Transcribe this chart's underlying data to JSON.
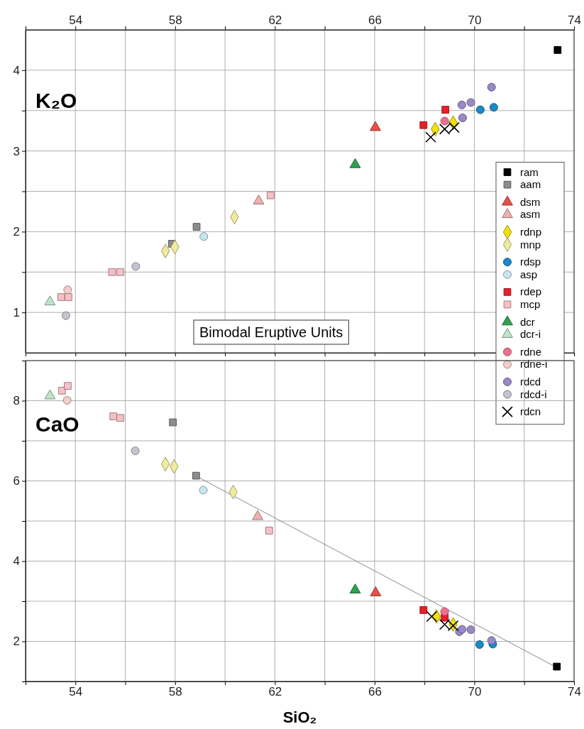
{
  "chart_data": [
    {
      "type": "scatter",
      "ylabel": "K₂O",
      "annotations": [
        "Bimodal Eruptive Units"
      ],
      "legend": "right",
      "grid": true,
      "tick_labels": "y",
      "xlim": [
        52,
        74
      ],
      "xticks": [
        {
          "value": 52,
          "label": null
        },
        54,
        {
          "value": 56,
          "label": null
        },
        58,
        {
          "value": 60,
          "label": null
        },
        62,
        {
          "value": 64,
          "label": null
        },
        66,
        {
          "value": 68,
          "label": null
        },
        70,
        {
          "value": 72,
          "label": null
        },
        74
      ],
      "x2lim": [
        52,
        74
      ],
      "x2ticks": [
        {
          "value": 52,
          "label": null
        },
        54,
        {
          "value": 56,
          "label": null
        },
        58,
        {
          "value": 60,
          "label": null
        },
        62,
        {
          "value": 64,
          "label": null
        },
        66,
        {
          "value": 68,
          "label": null
        },
        70,
        {
          "value": 72,
          "label": null
        },
        74
      ],
      "ylim": [
        0.5,
        4.5
      ],
      "yticks": [
        1,
        {
          "value": 1.5,
          "label": null
        },
        2,
        {
          "value": 2.5,
          "label": null
        },
        3,
        {
          "value": 3.5,
          "label": null
        },
        4
      ],
      "series": [
        {
          "name": "ram",
          "color": "#000000",
          "marker": "square",
          "x": [
            73.34
          ],
          "values": [
            4.25
          ]
        },
        {
          "name": "aam",
          "color": "#8c8c8c",
          "marker": "square",
          "x": [
            57.87,
            58.86
          ],
          "values": [
            1.85,
            2.06
          ]
        },
        {
          "name": "dsm",
          "color": "#e8504a",
          "marker": "triangle",
          "x": [
            66.03
          ],
          "values": [
            3.29
          ]
        },
        {
          "name": "asm",
          "color": "#f0b0b0",
          "marker": "triangle",
          "x": [
            61.35
          ],
          "values": [
            2.38
          ]
        },
        {
          "name": "rdnp",
          "color": "#f0e010",
          "marker": "diamond",
          "x": [
            68.43,
            69.15
          ],
          "values": [
            3.27,
            3.35
          ]
        },
        {
          "name": "mnp",
          "color": "#f0ec9c",
          "marker": "diamond",
          "x": [
            57.61,
            57.99,
            60.38
          ],
          "values": [
            1.76,
            1.81,
            2.18
          ]
        },
        {
          "name": "rdsp",
          "color": "#1a8ac8",
          "marker": "circle",
          "x": [
            70.24,
            70.78
          ],
          "values": [
            3.51,
            3.54
          ]
        },
        {
          "name": "asp",
          "color": "#c8e6ee",
          "marker": "circle",
          "x": [
            59.15
          ],
          "values": [
            1.94
          ]
        },
        {
          "name": "rdep",
          "color": "#e8202a",
          "marker": "square",
          "x": [
            67.96,
            68.84
          ],
          "values": [
            3.32,
            3.51
          ]
        },
        {
          "name": "mcp",
          "color": "#f6c0c6",
          "marker": "square",
          "x": [
            53.43,
            53.72,
            55.47,
            55.8,
            61.83
          ],
          "values": [
            1.19,
            1.19,
            1.5,
            1.5,
            2.45
          ]
        },
        {
          "name": "dcr",
          "color": "#30a050",
          "marker": "triangle",
          "x": [
            65.22
          ],
          "values": [
            2.83
          ]
        },
        {
          "name": "dcr-i",
          "color": "#bfe3c8",
          "marker": "triangle",
          "x": [
            52.98
          ],
          "values": [
            1.13
          ]
        },
        {
          "name": "rdne",
          "color": "#f07090",
          "marker": "circle",
          "x": [
            68.81
          ],
          "values": [
            3.37
          ]
        },
        {
          "name": "rdne-i",
          "color": "#f4cccc",
          "marker": "circle",
          "x": [
            53.69
          ],
          "values": [
            1.28
          ]
        },
        {
          "name": "rdcd",
          "color": "#9a88c8",
          "marker": "circle",
          "x": [
            69.53,
            69.5,
            69.86,
            70.69
          ],
          "values": [
            3.41,
            3.57,
            3.6,
            3.79
          ]
        },
        {
          "name": "rdcd-i",
          "color": "#c4c4d0",
          "marker": "circle",
          "x": [
            53.62,
            56.42
          ],
          "values": [
            0.96,
            1.57
          ]
        },
        {
          "name": "rdcn",
          "color": "#000000",
          "marker": "cross",
          "x": [
            68.25,
            68.81,
            69.19
          ],
          "values": [
            3.17,
            3.27,
            3.29
          ]
        }
      ]
    },
    {
      "type": "scatter",
      "ylabel": "CaO",
      "xlabel": "SiO₂",
      "grid": true,
      "xlim": [
        52,
        74
      ],
      "xticks": [
        {
          "value": 52,
          "label": null
        },
        54,
        {
          "value": 56,
          "label": null
        },
        58,
        {
          "value": 60,
          "label": null
        },
        62,
        {
          "value": 64,
          "label": null
        },
        66,
        {
          "value": 68,
          "label": null
        },
        70,
        {
          "value": 72,
          "label": null
        },
        74
      ],
      "ylim": [
        1,
        9
      ],
      "yticks": [
        {
          "value": 1,
          "label": null
        },
        2,
        {
          "value": 3,
          "label": null
        },
        4,
        {
          "value": 5,
          "label": null
        },
        6,
        {
          "value": 7,
          "label": null
        },
        8,
        {
          "value": 9,
          "label": null
        }
      ],
      "series": [
        {
          "type": "line",
          "color": "#888888",
          "marker": "none",
          "x": [
            58.9,
            73.3
          ],
          "values": [
            6.1,
            1.35
          ]
        },
        {
          "color": "#000000",
          "marker": "square",
          "x": [
            73.31
          ],
          "values": [
            1.37
          ]
        },
        {
          "color": "#8c8c8c",
          "marker": "square",
          "x": [
            57.91,
            58.84
          ],
          "values": [
            7.46,
            6.13
          ]
        },
        {
          "color": "#e8504a",
          "marker": "triangle",
          "x": [
            66.04
          ],
          "values": [
            3.21
          ]
        },
        {
          "color": "#f0b0b0",
          "marker": "triangle",
          "x": [
            61.31
          ],
          "values": [
            5.11
          ]
        },
        {
          "color": "#f0e010",
          "marker": "diamond",
          "x": [
            68.48,
            69.15
          ],
          "values": [
            2.62,
            2.42
          ]
        },
        {
          "color": "#f0ec9c",
          "marker": "diamond",
          "x": [
            57.61,
            57.96,
            60.33
          ],
          "values": [
            6.42,
            6.36,
            5.72
          ]
        },
        {
          "color": "#1a8ac8",
          "marker": "circle",
          "x": [
            70.21,
            70.74
          ],
          "values": [
            1.92,
            1.93
          ]
        },
        {
          "color": "#c8e6ee",
          "marker": "circle",
          "x": [
            59.13
          ],
          "values": [
            5.77
          ]
        },
        {
          "color": "#e8202a",
          "marker": "square",
          "x": [
            67.96,
            68.81
          ],
          "values": [
            2.78,
            2.59
          ]
        },
        {
          "color": "#f6c0c6",
          "marker": "square",
          "x": [
            53.46,
            53.69,
            55.52,
            55.8,
            61.77
          ],
          "values": [
            8.25,
            8.37,
            7.61,
            7.57,
            4.76
          ]
        },
        {
          "color": "#30a050",
          "marker": "triangle",
          "x": [
            65.22
          ],
          "values": [
            3.28
          ]
        },
        {
          "color": "#bfe3c8",
          "marker": "triangle",
          "x": [
            52.98
          ],
          "values": [
            8.12
          ]
        },
        {
          "color": "#f07090",
          "marker": "circle",
          "x": [
            68.81
          ],
          "values": [
            2.74
          ]
        },
        {
          "color": "#f4cccc",
          "marker": "circle",
          "x": [
            53.67
          ],
          "values": [
            8.01
          ]
        },
        {
          "color": "#9a88c8",
          "marker": "circle",
          "x": [
            69.4,
            69.51,
            69.86,
            70.69
          ],
          "values": [
            2.24,
            2.3,
            2.29,
            2.02
          ]
        },
        {
          "color": "#c4c4d0",
          "marker": "circle",
          "x": [
            56.4
          ],
          "values": [
            6.75
          ]
        },
        {
          "color": "#000000",
          "marker": "cross",
          "x": [
            68.29,
            68.81,
            69.15
          ],
          "values": [
            2.62,
            2.42,
            2.39
          ]
        }
      ]
    }
  ]
}
